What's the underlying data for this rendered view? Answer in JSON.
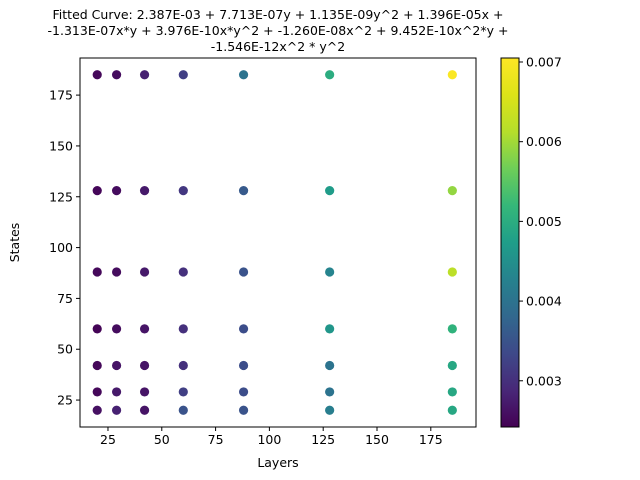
{
  "chart_data": {
    "type": "scatter",
    "title_lines": [
      "Fitted Curve: 2.387E-03 + 7.713E-07y + 1.135E-09y^2 + 1.396E-05x +",
      "-1.313E-07x*y + 3.976E-10x*y^2 + -1.260E-08x^2 + 9.452E-10x^2*y +",
      "-1.546E-12x^2 * y^2"
    ],
    "xlabel": "Layers",
    "ylabel": "States",
    "xlim": [
      12,
      196
    ],
    "ylim": [
      11.75,
      193.25
    ],
    "xticks": [
      25,
      50,
      75,
      100,
      125,
      150,
      175
    ],
    "yticks": [
      25,
      50,
      75,
      100,
      125,
      150,
      175
    ],
    "colorbar": {
      "range": [
        0.00242,
        0.00705
      ],
      "ticks": [
        0.003,
        0.004,
        0.005,
        0.006,
        0.007
      ],
      "tick_labels": [
        "0.003",
        "0.004",
        "0.005",
        "0.006",
        "0.007"
      ],
      "colormap": "viridis"
    },
    "points": [
      {
        "x": 20,
        "y": 185,
        "c": 0.0025
      },
      {
        "x": 29,
        "y": 185,
        "c": 0.00255
      },
      {
        "x": 42,
        "y": 185,
        "c": 0.0028
      },
      {
        "x": 60,
        "y": 185,
        "c": 0.0032
      },
      {
        "x": 88,
        "y": 185,
        "c": 0.004
      },
      {
        "x": 128,
        "y": 185,
        "c": 0.005
      },
      {
        "x": 185,
        "y": 185,
        "c": 0.007
      },
      {
        "x": 20,
        "y": 128,
        "c": 0.00248
      },
      {
        "x": 29,
        "y": 128,
        "c": 0.00255
      },
      {
        "x": 42,
        "y": 128,
        "c": 0.0027
      },
      {
        "x": 60,
        "y": 128,
        "c": 0.0031
      },
      {
        "x": 88,
        "y": 128,
        "c": 0.0036
      },
      {
        "x": 128,
        "y": 128,
        "c": 0.0047
      },
      {
        "x": 185,
        "y": 128,
        "c": 0.0059
      },
      {
        "x": 20,
        "y": 88,
        "c": 0.0025
      },
      {
        "x": 29,
        "y": 88,
        "c": 0.00255
      },
      {
        "x": 42,
        "y": 88,
        "c": 0.0027
      },
      {
        "x": 60,
        "y": 88,
        "c": 0.003
      },
      {
        "x": 88,
        "y": 88,
        "c": 0.0035
      },
      {
        "x": 128,
        "y": 88,
        "c": 0.0043
      },
      {
        "x": 185,
        "y": 88,
        "c": 0.0062
      },
      {
        "x": 20,
        "y": 60,
        "c": 0.00245
      },
      {
        "x": 29,
        "y": 60,
        "c": 0.00255
      },
      {
        "x": 42,
        "y": 60,
        "c": 0.00265
      },
      {
        "x": 60,
        "y": 60,
        "c": 0.003
      },
      {
        "x": 88,
        "y": 60,
        "c": 0.0034
      },
      {
        "x": 128,
        "y": 60,
        "c": 0.0046
      },
      {
        "x": 185,
        "y": 60,
        "c": 0.0051
      },
      {
        "x": 20,
        "y": 42,
        "c": 0.0025
      },
      {
        "x": 29,
        "y": 42,
        "c": 0.00265
      },
      {
        "x": 42,
        "y": 42,
        "c": 0.00265
      },
      {
        "x": 60,
        "y": 42,
        "c": 0.003
      },
      {
        "x": 88,
        "y": 42,
        "c": 0.0034
      },
      {
        "x": 128,
        "y": 42,
        "c": 0.004
      },
      {
        "x": 185,
        "y": 42,
        "c": 0.0049
      },
      {
        "x": 20,
        "y": 29,
        "c": 0.0025
      },
      {
        "x": 29,
        "y": 29,
        "c": 0.0027
      },
      {
        "x": 42,
        "y": 29,
        "c": 0.00265
      },
      {
        "x": 60,
        "y": 29,
        "c": 0.0032
      },
      {
        "x": 88,
        "y": 29,
        "c": 0.0034
      },
      {
        "x": 128,
        "y": 29,
        "c": 0.004
      },
      {
        "x": 185,
        "y": 29,
        "c": 0.0049
      },
      {
        "x": 20,
        "y": 20,
        "c": 0.0026
      },
      {
        "x": 29,
        "y": 20,
        "c": 0.0028
      },
      {
        "x": 42,
        "y": 20,
        "c": 0.00265
      },
      {
        "x": 60,
        "y": 20,
        "c": 0.0035
      },
      {
        "x": 88,
        "y": 20,
        "c": 0.0035
      },
      {
        "x": 128,
        "y": 20,
        "c": 0.0042
      },
      {
        "x": 185,
        "y": 20,
        "c": 0.0049
      }
    ]
  }
}
